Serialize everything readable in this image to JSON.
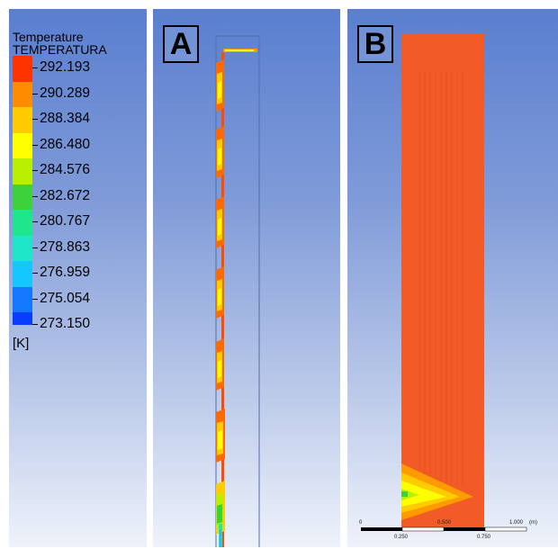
{
  "legend": {
    "title_line1": "Temperature",
    "title_line2": "TEMPERATURA",
    "unit": "[K]",
    "values": [
      "292.193",
      "290.289",
      "288.384",
      "286.480",
      "284.576",
      "282.672",
      "280.767",
      "278.863",
      "276.959",
      "275.054",
      "273.150"
    ],
    "colors": [
      "#ff3300",
      "#ff8c00",
      "#ffcc00",
      "#ffff00",
      "#b9f000",
      "#3cd23c",
      "#1ee68c",
      "#1ee6c8",
      "#14c8ff",
      "#1478ff",
      "#0a3cff"
    ]
  },
  "panel_a": {
    "tag": "A"
  },
  "panel_b": {
    "tag": "B",
    "scale_top": [
      "0",
      "0.500",
      "1.000",
      "(m)"
    ],
    "scale_bottom": [
      "0.250",
      "0.750"
    ]
  }
}
